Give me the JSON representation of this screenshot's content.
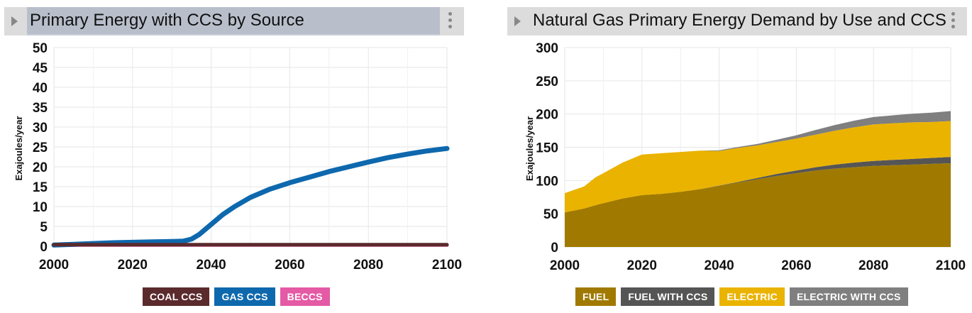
{
  "charts": [
    {
      "id": "left",
      "title": "Primary Energy with CCS by Source",
      "chart_data": {
        "type": "line",
        "title": "Primary Energy with CCS by Source",
        "xlabel": "",
        "ylabel": "Exajoules/year",
        "xlim": [
          2000,
          2100
        ],
        "ylim": [
          0,
          50
        ],
        "x_ticks": [
          2000,
          2020,
          2040,
          2060,
          2080,
          2100
        ],
        "y_ticks": [
          0,
          5,
          10,
          15,
          20,
          25,
          30,
          35,
          40,
          45,
          50
        ],
        "x": [
          2000,
          2005,
          2010,
          2015,
          2020,
          2025,
          2030,
          2033,
          2035,
          2037,
          2040,
          2043,
          2046,
          2050,
          2055,
          2060,
          2065,
          2070,
          2075,
          2080,
          2085,
          2090,
          2095,
          2100
        ],
        "series": [
          {
            "name": "COAL CCS",
            "color": "#5b2a2d",
            "values": [
              0.4,
              0.4,
              0.4,
              0.4,
              0.4,
              0.4,
              0.4,
              0.4,
              0.4,
              0.4,
              0.4,
              0.4,
              0.4,
              0.4,
              0.4,
              0.4,
              0.4,
              0.4,
              0.4,
              0.4,
              0.4,
              0.4,
              0.4,
              0.4
            ]
          },
          {
            "name": "GAS CCS",
            "color": "#0e68ad",
            "values": [
              0.3,
              0.5,
              0.7,
              0.9,
              1.0,
              1.1,
              1.2,
              1.3,
              1.8,
              3.0,
              5.5,
              8.0,
              10.0,
              12.3,
              14.4,
              16.0,
              17.4,
              18.8,
              20.0,
              21.2,
              22.3,
              23.2,
              24.0,
              24.6
            ]
          },
          {
            "name": "BECCS",
            "color": "#e45aa5",
            "values": [
              0.3,
              0.3,
              0.3,
              0.3,
              0.3,
              0.3,
              0.3,
              0.3,
              0.3,
              0.3,
              0.3,
              0.3,
              0.3,
              0.3,
              0.3,
              0.3,
              0.3,
              0.3,
              0.3,
              0.3,
              0.3,
              0.3,
              0.3,
              0.3
            ]
          }
        ],
        "legend": [
          "COAL CCS",
          "GAS CCS",
          "BECCS"
        ],
        "legend_position": "bottom",
        "grid": true
      }
    },
    {
      "id": "right",
      "title": "Natural Gas Primary Energy Demand by Use and CCS",
      "chart_data": {
        "type": "area",
        "stacked": true,
        "title": "Natural Gas Primary Energy Demand by Use and CCS",
        "xlabel": "",
        "ylabel": "Exajoules/year",
        "xlim": [
          2000,
          2100
        ],
        "ylim": [
          0,
          300
        ],
        "x_ticks": [
          2000,
          2020,
          2040,
          2060,
          2080,
          2100
        ],
        "y_ticks": [
          0,
          50,
          100,
          150,
          200,
          250,
          300
        ],
        "x": [
          2000,
          2005,
          2008,
          2010,
          2015,
          2020,
          2025,
          2030,
          2035,
          2040,
          2045,
          2050,
          2055,
          2060,
          2065,
          2070,
          2075,
          2080,
          2085,
          2090,
          2095,
          2100
        ],
        "series": [
          {
            "name": "FUEL",
            "color": "#a07a00",
            "values": [
              52,
              58,
              63,
              66,
              73,
              78,
              80,
              83,
              87,
              92,
              97,
              102,
              107,
              111,
              115,
              118,
              120,
              122,
              123,
              124,
              125,
              126
            ]
          },
          {
            "name": "FUEL WITH CCS",
            "color": "#555555",
            "values": [
              0,
              0,
              0,
              0,
              0,
              0,
              0,
              0,
              0,
              0.5,
              1,
              2,
              3,
              4,
              5,
              6,
              7,
              7.5,
              8,
              8.5,
              9,
              9.5
            ]
          },
          {
            "name": "ELECTRIC",
            "color": "#eab300",
            "values": [
              29,
              33,
              42,
              45,
              54,
              61,
              61,
              60,
              58,
              52,
              51,
              49,
              48,
              48,
              49,
              51,
              53,
              55,
              55,
              55,
              54,
              54
            ]
          },
          {
            "name": "ELECTRIC WITH CCS",
            "color": "#7f7f7f",
            "values": [
              0,
              0,
              0,
              0,
              0,
              0,
              0,
              0,
              0,
              1,
              1.5,
              2,
              3.5,
              5,
              7,
              8.5,
              10,
              11,
              12,
              13,
              14,
              15
            ]
          }
        ],
        "legend": [
          "FUEL",
          "FUEL WITH CCS",
          "ELECTRIC",
          "ELECTRIC WITH CCS"
        ],
        "legend_position": "bottom",
        "grid": true
      }
    }
  ]
}
